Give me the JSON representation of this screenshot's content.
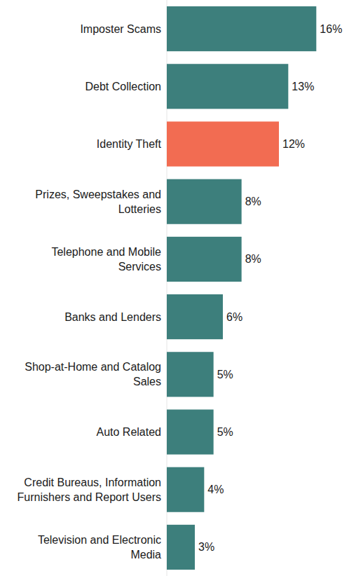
{
  "chart_data": {
    "type": "bar",
    "orientation": "horizontal",
    "categories": [
      "Imposter Scams",
      "Debt Collection",
      "Identity Theft",
      "Prizes, Sweepstakes and Lotteries",
      "Telephone and Mobile Services",
      "Banks and Lenders",
      "Shop-at-Home and Catalog Sales",
      "Auto Related",
      "Credit Bureaus, Information Furnishers and Report Users",
      "Television and Electronic Media"
    ],
    "values": [
      16,
      13,
      12,
      8,
      8,
      6,
      5,
      5,
      4,
      3
    ],
    "value_labels": [
      "16%",
      "13%",
      "12%",
      "8%",
      "8%",
      "6%",
      "5%",
      "5%",
      "4%",
      "3%"
    ],
    "colors": [
      "#3d7f7c",
      "#3d7f7c",
      "#f26c52",
      "#3d7f7c",
      "#3d7f7c",
      "#3d7f7c",
      "#3d7f7c",
      "#3d7f7c",
      "#3d7f7c",
      "#3d7f7c"
    ],
    "xlim": [
      0,
      18
    ],
    "data_labels": true,
    "tick_labels": "y",
    "grid": false
  }
}
